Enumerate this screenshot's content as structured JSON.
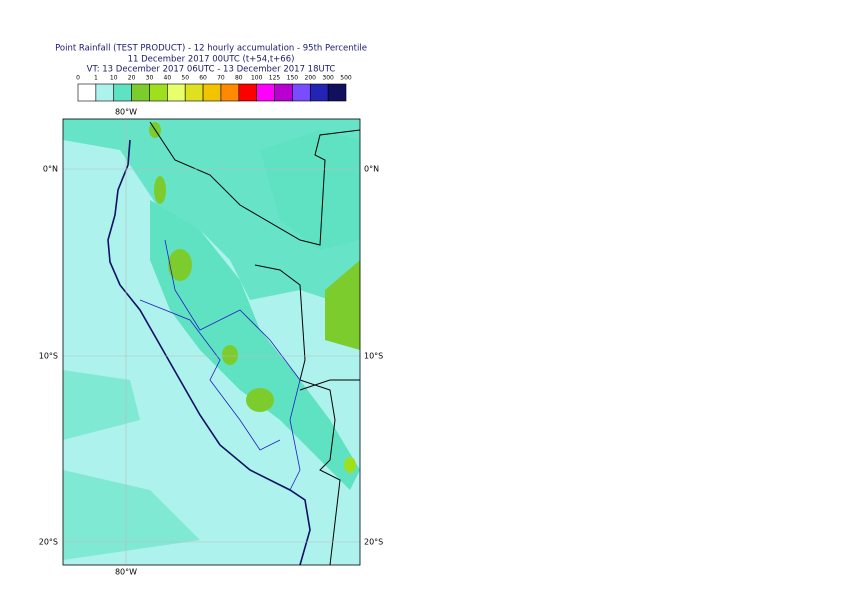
{
  "header": {
    "lines": [
      "Point Rainfall (TEST PRODUCT) - 12 hourly accumulation - 95th Percentile",
      "11 December 2017 00UTC (t+54,t+66)",
      "VT: 13 December 2017 06UTC - 13 December 2017 18UTC"
    ]
  },
  "legend": {
    "labels": [
      "0",
      "1",
      "10",
      "20",
      "30",
      "40",
      "50",
      "60",
      "70",
      "80",
      "100",
      "125",
      "150",
      "200",
      "300",
      "500"
    ],
    "colors": [
      "#ffffff",
      "#aef2ee",
      "#5fe2c2",
      "#7ccc2e",
      "#9fe01e",
      "#e6ff6a",
      "#dfe020",
      "#f2c400",
      "#ff8a00",
      "#ff0000",
      "#ff00ff",
      "#b800d0",
      "#7a4cff",
      "#2424b4",
      "#10105e"
    ]
  },
  "map": {
    "lon_labels": [
      "80°W"
    ],
    "lat_labels": [
      "0°N",
      "10°S",
      "20°S"
    ]
  }
}
